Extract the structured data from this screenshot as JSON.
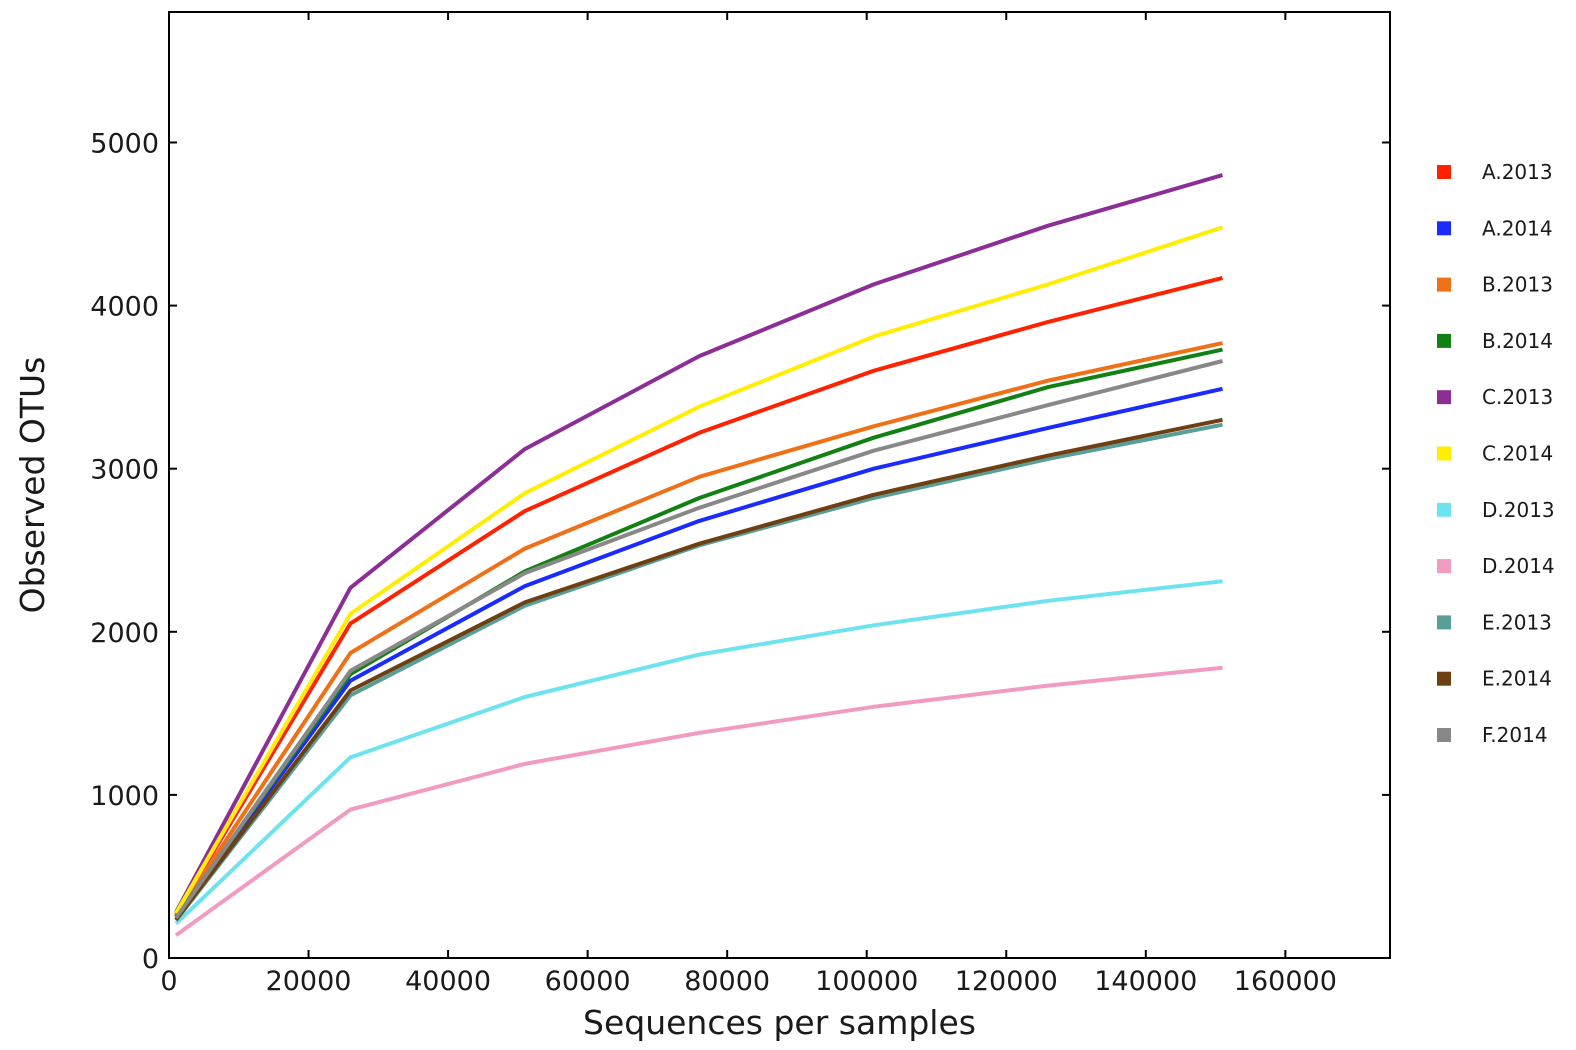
{
  "chart_data": {
    "type": "line",
    "xlabel": "Sequences per samples",
    "ylabel": "Observed OTUs",
    "xlim": [
      0,
      175000
    ],
    "ylim": [
      0,
      5000
    ],
    "yview_max": 5800,
    "xticks": [
      0,
      20000,
      40000,
      60000,
      80000,
      100000,
      120000,
      140000,
      160000
    ],
    "yticks": [
      0,
      1000,
      2000,
      3000,
      4000,
      5000
    ],
    "x": [
      1000,
      26000,
      51000,
      76000,
      101000,
      126000,
      151000
    ],
    "grid": false,
    "legend_position": "right",
    "series": [
      {
        "name": "A.2013",
        "color": "#ff2200",
        "values": [
          270,
          2050,
          2740,
          3220,
          3600,
          3900,
          4170
        ]
      },
      {
        "name": "A.2014",
        "color": "#1a2bff",
        "values": [
          250,
          1700,
          2280,
          2680,
          3000,
          3250,
          3490
        ]
      },
      {
        "name": "B.2013",
        "color": "#f07018",
        "values": [
          260,
          1870,
          2510,
          2950,
          3260,
          3540,
          3770
        ]
      },
      {
        "name": "B.2014",
        "color": "#138013",
        "values": [
          250,
          1740,
          2370,
          2820,
          3190,
          3500,
          3730
        ]
      },
      {
        "name": "C.2013",
        "color": "#8b2f96",
        "values": [
          280,
          2270,
          3120,
          3690,
          4130,
          4490,
          4800
        ]
      },
      {
        "name": "C.2014",
        "color": "#ffee00",
        "values": [
          275,
          2110,
          2850,
          3380,
          3810,
          4130,
          4480
        ]
      },
      {
        "name": "D.2013",
        "color": "#6ee3f0",
        "values": [
          210,
          1230,
          1600,
          1860,
          2040,
          2190,
          2310
        ]
      },
      {
        "name": "D.2014",
        "color": "#f29bc2",
        "values": [
          140,
          910,
          1190,
          1380,
          1540,
          1670,
          1780
        ]
      },
      {
        "name": "E.2013",
        "color": "#5a9e98",
        "values": [
          230,
          1610,
          2160,
          2530,
          2820,
          3060,
          3270
        ]
      },
      {
        "name": "E.2014",
        "color": "#6e3f12",
        "values": [
          235,
          1640,
          2180,
          2540,
          2840,
          3080,
          3300
        ]
      },
      {
        "name": "F.2014",
        "color": "#888888",
        "values": [
          245,
          1760,
          2360,
          2760,
          3110,
          3390,
          3660
        ]
      }
    ]
  }
}
